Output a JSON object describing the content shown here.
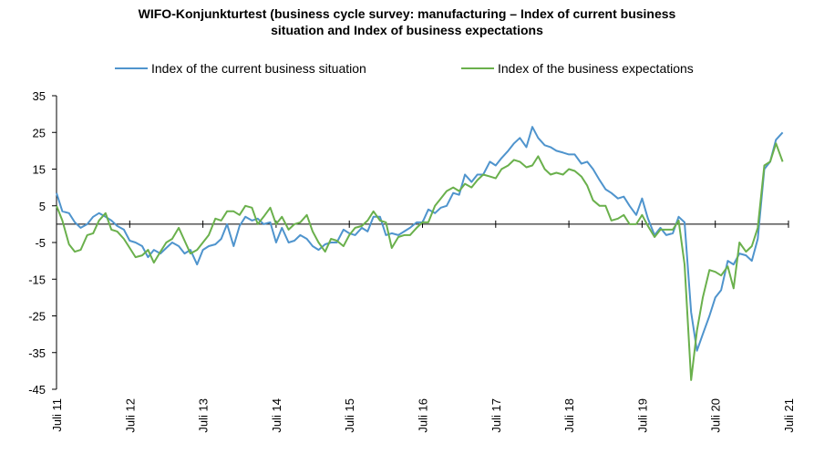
{
  "chart_data": {
    "type": "line",
    "title_line1": "WIFO-Konjunkturtest (business cycle survey: manufacturing – Index of current business",
    "title_line2": "situation and Index of business expectations",
    "ylim": [
      -45,
      35
    ],
    "yticks": [
      35,
      25,
      15,
      5,
      -5,
      -15,
      -25,
      -35,
      -45
    ],
    "xlim": [
      2011.5,
      2021.5
    ],
    "xticks": [
      {
        "label": "Juli 11",
        "x": 2011.5
      },
      {
        "label": "Juli 12",
        "x": 2012.5
      },
      {
        "label": "Juli 13",
        "x": 2013.5
      },
      {
        "label": "Juli 14",
        "x": 2014.5
      },
      {
        "label": "Juli 15",
        "x": 2015.5
      },
      {
        "label": "Juli 16",
        "x": 2016.5
      },
      {
        "label": "Juli 17",
        "x": 2017.5
      },
      {
        "label": "Juli 18",
        "x": 2018.5
      },
      {
        "label": "Juli 19",
        "x": 2019.5
      },
      {
        "label": "Juli 20",
        "x": 2020.5
      },
      {
        "label": "Juli 21",
        "x": 2021.5
      }
    ],
    "legend_position": "top",
    "series": [
      {
        "name": "Index of the current business situation",
        "color": "#4f94cd",
        "points": [
          [
            2011.5,
            8.5
          ],
          [
            2011.58,
            3.5
          ],
          [
            2011.67,
            3
          ],
          [
            2011.75,
            0.5
          ],
          [
            2011.83,
            -1
          ],
          [
            2011.92,
            0
          ],
          [
            2012.0,
            2
          ],
          [
            2012.08,
            3
          ],
          [
            2012.17,
            2
          ],
          [
            2012.25,
            1
          ],
          [
            2012.33,
            -0.5
          ],
          [
            2012.42,
            -1.5
          ],
          [
            2012.5,
            -4.5
          ],
          [
            2012.58,
            -5
          ],
          [
            2012.67,
            -6
          ],
          [
            2012.75,
            -9
          ],
          [
            2012.83,
            -7
          ],
          [
            2012.92,
            -8
          ],
          [
            2013.0,
            -6.5
          ],
          [
            2013.08,
            -5
          ],
          [
            2013.17,
            -6
          ],
          [
            2013.25,
            -8
          ],
          [
            2013.33,
            -7
          ],
          [
            2013.42,
            -11
          ],
          [
            2013.5,
            -7
          ],
          [
            2013.58,
            -6
          ],
          [
            2013.67,
            -5.5
          ],
          [
            2013.75,
            -4
          ],
          [
            2013.83,
            0
          ],
          [
            2013.92,
            -6
          ],
          [
            2014.0,
            -0.5
          ],
          [
            2014.08,
            2
          ],
          [
            2014.17,
            1
          ],
          [
            2014.25,
            1.5
          ],
          [
            2014.33,
            0
          ],
          [
            2014.42,
            0.5
          ],
          [
            2014.5,
            -5
          ],
          [
            2014.58,
            -1
          ],
          [
            2014.67,
            -5
          ],
          [
            2014.75,
            -4.5
          ],
          [
            2014.83,
            -3
          ],
          [
            2014.92,
            -4
          ],
          [
            2015.0,
            -6
          ],
          [
            2015.08,
            -7
          ],
          [
            2015.17,
            -5.5
          ],
          [
            2015.25,
            -5
          ],
          [
            2015.33,
            -5
          ],
          [
            2015.42,
            -1.5
          ],
          [
            2015.5,
            -2.5
          ],
          [
            2015.58,
            -3
          ],
          [
            2015.67,
            -1
          ],
          [
            2015.75,
            -2
          ],
          [
            2015.83,
            2
          ],
          [
            2015.92,
            2
          ],
          [
            2016.0,
            -3
          ],
          [
            2016.08,
            -2.5
          ],
          [
            2016.17,
            -3
          ],
          [
            2016.25,
            -2
          ],
          [
            2016.33,
            -1
          ],
          [
            2016.42,
            0.5
          ],
          [
            2016.5,
            0.5
          ],
          [
            2016.58,
            4
          ],
          [
            2016.67,
            3
          ],
          [
            2016.75,
            4.5
          ],
          [
            2016.83,
            5
          ],
          [
            2016.92,
            8.5
          ],
          [
            2017.0,
            8
          ],
          [
            2017.08,
            13.5
          ],
          [
            2017.17,
            11.5
          ],
          [
            2017.25,
            13.5
          ],
          [
            2017.33,
            13.5
          ],
          [
            2017.42,
            17
          ],
          [
            2017.5,
            16
          ],
          [
            2017.58,
            18
          ],
          [
            2017.67,
            20
          ],
          [
            2017.75,
            22
          ],
          [
            2017.83,
            23.5
          ],
          [
            2017.92,
            21
          ],
          [
            2018.0,
            26.5
          ],
          [
            2018.08,
            23.5
          ],
          [
            2018.17,
            21.5
          ],
          [
            2018.25,
            21
          ],
          [
            2018.33,
            20
          ],
          [
            2018.42,
            19.5
          ],
          [
            2018.5,
            19
          ],
          [
            2018.58,
            19
          ],
          [
            2018.67,
            16.5
          ],
          [
            2018.75,
            17
          ],
          [
            2018.83,
            15
          ],
          [
            2018.92,
            12
          ],
          [
            2019.0,
            9.5
          ],
          [
            2019.08,
            8.5
          ],
          [
            2019.17,
            7
          ],
          [
            2019.25,
            7.5
          ],
          [
            2019.33,
            5
          ],
          [
            2019.42,
            2.5
          ],
          [
            2019.5,
            7
          ],
          [
            2019.58,
            1.5
          ],
          [
            2019.67,
            -3
          ],
          [
            2019.75,
            -1
          ],
          [
            2019.83,
            -3
          ],
          [
            2019.92,
            -2.5
          ],
          [
            2020.0,
            2
          ],
          [
            2020.08,
            0.5
          ],
          [
            2020.17,
            -24
          ],
          [
            2020.25,
            -34.5
          ],
          [
            2020.33,
            -30
          ],
          [
            2020.42,
            -25
          ],
          [
            2020.5,
            -20
          ],
          [
            2020.58,
            -18
          ],
          [
            2020.67,
            -10
          ],
          [
            2020.75,
            -11
          ],
          [
            2020.83,
            -8
          ],
          [
            2020.92,
            -8.5
          ],
          [
            2021.0,
            -10
          ],
          [
            2021.08,
            -4
          ],
          [
            2021.17,
            15
          ],
          [
            2021.25,
            17
          ],
          [
            2021.33,
            23
          ],
          [
            2021.42,
            25
          ]
        ]
      },
      {
        "name": "Index of the business expectations",
        "color": "#6ab04c",
        "points": [
          [
            2011.5,
            5
          ],
          [
            2011.58,
            1
          ],
          [
            2011.67,
            -5.5
          ],
          [
            2011.75,
            -7.5
          ],
          [
            2011.83,
            -7
          ],
          [
            2011.92,
            -3
          ],
          [
            2012.0,
            -2.5
          ],
          [
            2012.08,
            1
          ],
          [
            2012.17,
            3
          ],
          [
            2012.25,
            -1.5
          ],
          [
            2012.33,
            -2
          ],
          [
            2012.42,
            -4
          ],
          [
            2012.5,
            -6.5
          ],
          [
            2012.58,
            -9
          ],
          [
            2012.67,
            -8.5
          ],
          [
            2012.75,
            -7
          ],
          [
            2012.83,
            -10.5
          ],
          [
            2012.92,
            -7.5
          ],
          [
            2013.0,
            -5
          ],
          [
            2013.08,
            -4
          ],
          [
            2013.17,
            -1
          ],
          [
            2013.25,
            -4.5
          ],
          [
            2013.33,
            -8
          ],
          [
            2013.42,
            -7
          ],
          [
            2013.5,
            -5
          ],
          [
            2013.58,
            -3
          ],
          [
            2013.67,
            1.5
          ],
          [
            2013.75,
            1
          ],
          [
            2013.83,
            3.5
          ],
          [
            2013.92,
            3.5
          ],
          [
            2014.0,
            2.5
          ],
          [
            2014.08,
            5
          ],
          [
            2014.17,
            4.5
          ],
          [
            2014.25,
            0
          ],
          [
            2014.33,
            2
          ],
          [
            2014.42,
            4.5
          ],
          [
            2014.5,
            0
          ],
          [
            2014.58,
            2
          ],
          [
            2014.67,
            -1.5
          ],
          [
            2014.75,
            0
          ],
          [
            2014.83,
            0.5
          ],
          [
            2014.92,
            2.5
          ],
          [
            2015.0,
            -2
          ],
          [
            2015.08,
            -5
          ],
          [
            2015.17,
            -7.5
          ],
          [
            2015.25,
            -4
          ],
          [
            2015.33,
            -4.5
          ],
          [
            2015.42,
            -6
          ],
          [
            2015.5,
            -3
          ],
          [
            2015.58,
            -1
          ],
          [
            2015.67,
            -0.5
          ],
          [
            2015.75,
            1
          ],
          [
            2015.83,
            3.5
          ],
          [
            2015.92,
            1
          ],
          [
            2016.0,
            0.5
          ],
          [
            2016.08,
            -6.5
          ],
          [
            2016.17,
            -3.5
          ],
          [
            2016.25,
            -3
          ],
          [
            2016.33,
            -3
          ],
          [
            2016.42,
            -1
          ],
          [
            2016.5,
            0.5
          ],
          [
            2016.58,
            0.5
          ],
          [
            2016.67,
            5
          ],
          [
            2016.75,
            7
          ],
          [
            2016.83,
            9
          ],
          [
            2016.92,
            10
          ],
          [
            2017.0,
            9
          ],
          [
            2017.08,
            11
          ],
          [
            2017.17,
            10
          ],
          [
            2017.25,
            12
          ],
          [
            2017.33,
            13.5
          ],
          [
            2017.42,
            13
          ],
          [
            2017.5,
            12.5
          ],
          [
            2017.58,
            15
          ],
          [
            2017.67,
            16
          ],
          [
            2017.75,
            17.5
          ],
          [
            2017.83,
            17
          ],
          [
            2017.92,
            15.5
          ],
          [
            2018.0,
            16
          ],
          [
            2018.08,
            18.5
          ],
          [
            2018.17,
            15
          ],
          [
            2018.25,
            13.5
          ],
          [
            2018.33,
            14
          ],
          [
            2018.42,
            13.5
          ],
          [
            2018.5,
            15
          ],
          [
            2018.58,
            14.5
          ],
          [
            2018.67,
            13
          ],
          [
            2018.75,
            10.5
          ],
          [
            2018.83,
            6.5
          ],
          [
            2018.92,
            5
          ],
          [
            2019.0,
            5
          ],
          [
            2019.08,
            1
          ],
          [
            2019.17,
            1.5
          ],
          [
            2019.25,
            2.5
          ],
          [
            2019.33,
            0
          ],
          [
            2019.42,
            0
          ],
          [
            2019.5,
            2.5
          ],
          [
            2019.58,
            -0.5
          ],
          [
            2019.67,
            -3.5
          ],
          [
            2019.75,
            -1.5
          ],
          [
            2019.83,
            -1.5
          ],
          [
            2019.92,
            -1.5
          ],
          [
            2020.0,
            1
          ],
          [
            2020.08,
            -11
          ],
          [
            2020.17,
            -42.5
          ],
          [
            2020.25,
            -29
          ],
          [
            2020.33,
            -20
          ],
          [
            2020.42,
            -12.5
          ],
          [
            2020.5,
            -13
          ],
          [
            2020.58,
            -14
          ],
          [
            2020.67,
            -11.5
          ],
          [
            2020.75,
            -17.5
          ],
          [
            2020.83,
            -5
          ],
          [
            2020.92,
            -7.5
          ],
          [
            2021.0,
            -6
          ],
          [
            2021.08,
            -1
          ],
          [
            2021.17,
            16
          ],
          [
            2021.25,
            17
          ],
          [
            2021.33,
            22
          ],
          [
            2021.42,
            17
          ]
        ]
      }
    ]
  }
}
